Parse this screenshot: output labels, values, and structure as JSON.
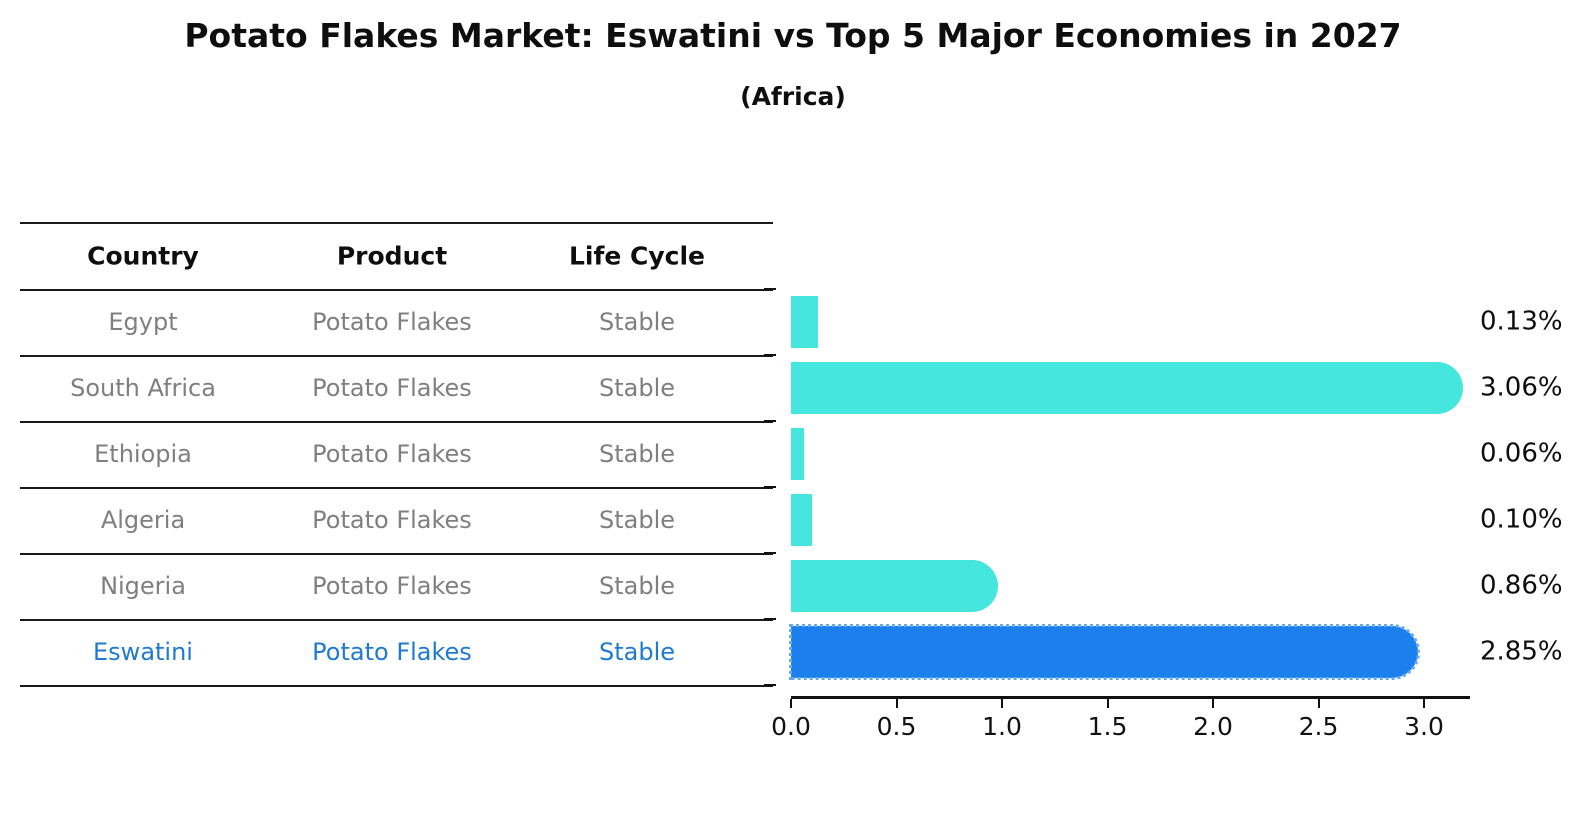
{
  "title": "Potato Flakes Market: Eswatini vs Top 5 Major Economies in 2027",
  "subtitle": "(Africa)",
  "table": {
    "headers": [
      "Country",
      "Product",
      "Life Cycle"
    ],
    "rows": [
      {
        "country": "Egypt",
        "product": "Potato Flakes",
        "life_cycle": "Stable",
        "highlight": false
      },
      {
        "country": "South Africa",
        "product": "Potato Flakes",
        "life_cycle": "Stable",
        "highlight": false
      },
      {
        "country": "Ethiopia",
        "product": "Potato Flakes",
        "life_cycle": "Stable",
        "highlight": false
      },
      {
        "country": "Algeria",
        "product": "Potato Flakes",
        "life_cycle": "Stable",
        "highlight": false
      },
      {
        "country": "Nigeria",
        "product": "Potato Flakes",
        "life_cycle": "Stable",
        "highlight": false
      },
      {
        "country": "Eswatini",
        "product": "Potato Flakes",
        "life_cycle": "Stable",
        "highlight": true
      }
    ]
  },
  "chart_data": {
    "type": "bar",
    "orientation": "horizontal",
    "title": "Potato Flakes Market: Eswatini vs Top 5 Major Economies in 2027",
    "subtitle": "(Africa)",
    "categories": [
      "Egypt",
      "South Africa",
      "Ethiopia",
      "Algeria",
      "Nigeria",
      "Eswatini"
    ],
    "values": [
      0.13,
      3.06,
      0.06,
      0.1,
      0.86,
      2.85
    ],
    "value_labels": [
      "0.13%",
      "3.06%",
      "0.06%",
      "0.10%",
      "0.86%",
      "2.85%"
    ],
    "x_tick_labels": [
      "0.0",
      "0.5",
      "1.0",
      "1.5",
      "2.0",
      "2.5",
      "3.0"
    ],
    "x_tick_values": [
      0.0,
      0.5,
      1.0,
      1.5,
      2.0,
      2.5,
      3.0
    ],
    "xlim": [
      0,
      3.2
    ],
    "grid": false,
    "highlight_index": 5,
    "colors": {
      "bar_default": "#45e6de",
      "bar_highlight": "#1b80ee",
      "highlight_text": "#1f7ad2",
      "row_text": "#7f7f7f",
      "axis_text": "#111111"
    }
  }
}
